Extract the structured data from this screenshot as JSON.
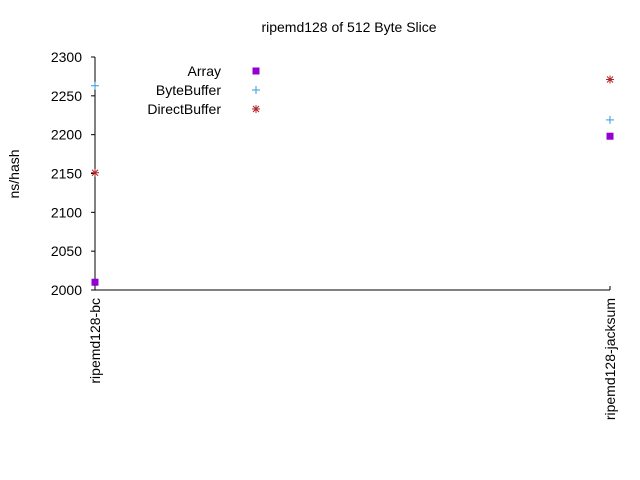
{
  "chart_data": {
    "type": "scatter",
    "title": "ripemd128 of 512 Byte Slice",
    "xlabel": "",
    "ylabel": "ns/hash",
    "categories": [
      "ripemd128-bc",
      "ripemd128-jacksum"
    ],
    "ylim": [
      2000,
      2300
    ],
    "yticks": [
      "2000",
      "2050",
      "2100",
      "2150",
      "2200",
      "2250",
      "2300"
    ],
    "legend_position": "top-left",
    "grid": false,
    "series": [
      {
        "name": "Array",
        "marker": "square",
        "color": "#9400d3",
        "values": [
          2010,
          2198
        ]
      },
      {
        "name": "ByteBuffer",
        "marker": "plus",
        "color": "#3a9ad9",
        "values": [
          2263,
          2219
        ]
      },
      {
        "name": "DirectBuffer",
        "marker": "star",
        "color": "#b22222",
        "values": [
          2151,
          2271
        ]
      }
    ]
  }
}
